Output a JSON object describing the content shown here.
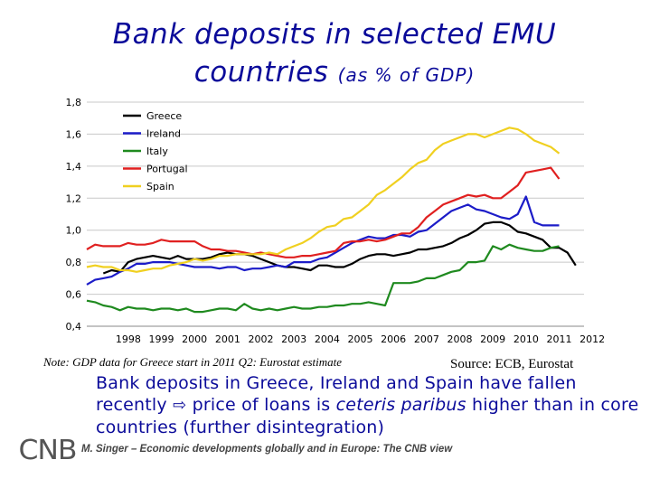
{
  "slide": {
    "title_line1": "Bank deposits in selected EMU",
    "title_line2_main": "countries",
    "title_line2_sub": "(as % of GDP)",
    "note": "Note: GDP data for Greece start in 2011 Q2: Eurostat estimate",
    "source": "Source: ECB, Eurostat",
    "bullet_part1": "Bank deposits in Greece, Ireland and Spain have fallen recently ",
    "bullet_arrow": "⇨",
    "bullet_part2": " price of loans is ",
    "bullet_italic": "ceteris paribus",
    "bullet_part3": " higher than in core countries (further disintegration)",
    "logo_text": "CNB",
    "footer": "M. Singer – Economic developments globally and in Europe: The CNB view"
  },
  "chart_data": {
    "type": "line",
    "x_ticks": [
      "1998",
      "1999",
      "2000",
      "2001",
      "2002",
      "2003",
      "2004",
      "2005",
      "2006",
      "2007",
      "2008",
      "2009",
      "2010",
      "2011",
      "2012"
    ],
    "xlim": [
      1997.25,
      2012.25
    ],
    "ylim": [
      0.4,
      1.8
    ],
    "y_ticks": [
      "0,4",
      "0,6",
      "0,8",
      "1,0",
      "1,2",
      "1,4",
      "1,6",
      "1,8"
    ],
    "y_tick_values": [
      0.4,
      0.6,
      0.8,
      1.0,
      1.2,
      1.4,
      1.6,
      1.8
    ],
    "grid": "horizontal",
    "legend_position": "top-left",
    "x_step": 0.25,
    "series": [
      {
        "name": "Greece",
        "color": "#000000",
        "x_start": 1997.75,
        "values": [
          0.73,
          0.75,
          0.74,
          0.8,
          0.82,
          0.83,
          0.84,
          0.83,
          0.82,
          0.84,
          0.82,
          0.82,
          0.82,
          0.83,
          0.85,
          0.86,
          0.85,
          0.85,
          0.84,
          0.82,
          0.8,
          0.78,
          0.77,
          0.77,
          0.76,
          0.75,
          0.78,
          0.78,
          0.77,
          0.77,
          0.79,
          0.82,
          0.84,
          0.85,
          0.85,
          0.84,
          0.85,
          0.86,
          0.88,
          0.88,
          0.89,
          0.9,
          0.92,
          0.95,
          0.97,
          1.0,
          1.04,
          1.05,
          1.05,
          1.03,
          0.99,
          0.98,
          0.96,
          0.94,
          0.89,
          0.89,
          0.86,
          0.78
        ]
      },
      {
        "name": "Ireland",
        "color": "#1c1cc8",
        "x_start": 1997.25,
        "values": [
          0.66,
          0.69,
          0.7,
          0.71,
          0.74,
          0.76,
          0.79,
          0.79,
          0.8,
          0.8,
          0.8,
          0.79,
          0.78,
          0.77,
          0.77,
          0.77,
          0.76,
          0.77,
          0.77,
          0.75,
          0.76,
          0.76,
          0.77,
          0.78,
          0.77,
          0.8,
          0.8,
          0.8,
          0.82,
          0.83,
          0.86,
          0.89,
          0.92,
          0.94,
          0.96,
          0.95,
          0.95,
          0.97,
          0.97,
          0.96,
          0.99,
          1.0,
          1.04,
          1.08,
          1.12,
          1.14,
          1.16,
          1.13,
          1.12,
          1.1,
          1.08,
          1.07,
          1.1,
          1.21,
          1.05,
          1.03,
          1.03,
          1.03
        ]
      },
      {
        "name": "Italy",
        "color": "#1f8a1f",
        "x_start": 1997.25,
        "values": [
          0.56,
          0.55,
          0.53,
          0.52,
          0.5,
          0.52,
          0.51,
          0.51,
          0.5,
          0.51,
          0.51,
          0.5,
          0.51,
          0.49,
          0.49,
          0.5,
          0.51,
          0.51,
          0.5,
          0.54,
          0.51,
          0.5,
          0.51,
          0.5,
          0.51,
          0.52,
          0.51,
          0.51,
          0.52,
          0.52,
          0.53,
          0.53,
          0.54,
          0.54,
          0.55,
          0.54,
          0.53,
          0.67,
          0.67,
          0.67,
          0.68,
          0.7,
          0.7,
          0.72,
          0.74,
          0.75,
          0.8,
          0.8,
          0.81,
          0.9,
          0.88,
          0.91,
          0.89,
          0.88,
          0.87,
          0.87,
          0.89,
          0.9
        ]
      },
      {
        "name": "Portugal",
        "color": "#e02020",
        "x_start": 1997.25,
        "values": [
          0.88,
          0.91,
          0.9,
          0.9,
          0.9,
          0.92,
          0.91,
          0.91,
          0.92,
          0.94,
          0.93,
          0.93,
          0.93,
          0.93,
          0.9,
          0.88,
          0.88,
          0.87,
          0.87,
          0.86,
          0.85,
          0.86,
          0.85,
          0.84,
          0.83,
          0.83,
          0.84,
          0.84,
          0.85,
          0.86,
          0.87,
          0.92,
          0.93,
          0.93,
          0.94,
          0.93,
          0.94,
          0.96,
          0.98,
          0.98,
          1.02,
          1.08,
          1.12,
          1.16,
          1.18,
          1.2,
          1.22,
          1.21,
          1.22,
          1.2,
          1.2,
          1.24,
          1.28,
          1.36,
          1.37,
          1.38,
          1.39,
          1.32
        ]
      },
      {
        "name": "Spain",
        "color": "#f0d020",
        "x_start": 1997.25,
        "values": [
          0.77,
          0.78,
          0.77,
          0.77,
          0.75,
          0.75,
          0.74,
          0.75,
          0.76,
          0.76,
          0.78,
          0.79,
          0.8,
          0.82,
          0.81,
          0.82,
          0.84,
          0.84,
          0.85,
          0.85,
          0.85,
          0.85,
          0.86,
          0.85,
          0.88,
          0.9,
          0.92,
          0.95,
          0.99,
          1.02,
          1.03,
          1.07,
          1.08,
          1.12,
          1.16,
          1.22,
          1.25,
          1.29,
          1.33,
          1.38,
          1.42,
          1.44,
          1.5,
          1.54,
          1.56,
          1.58,
          1.6,
          1.6,
          1.58,
          1.6,
          1.62,
          1.64,
          1.63,
          1.6,
          1.56,
          1.54,
          1.52,
          1.48
        ]
      }
    ]
  }
}
